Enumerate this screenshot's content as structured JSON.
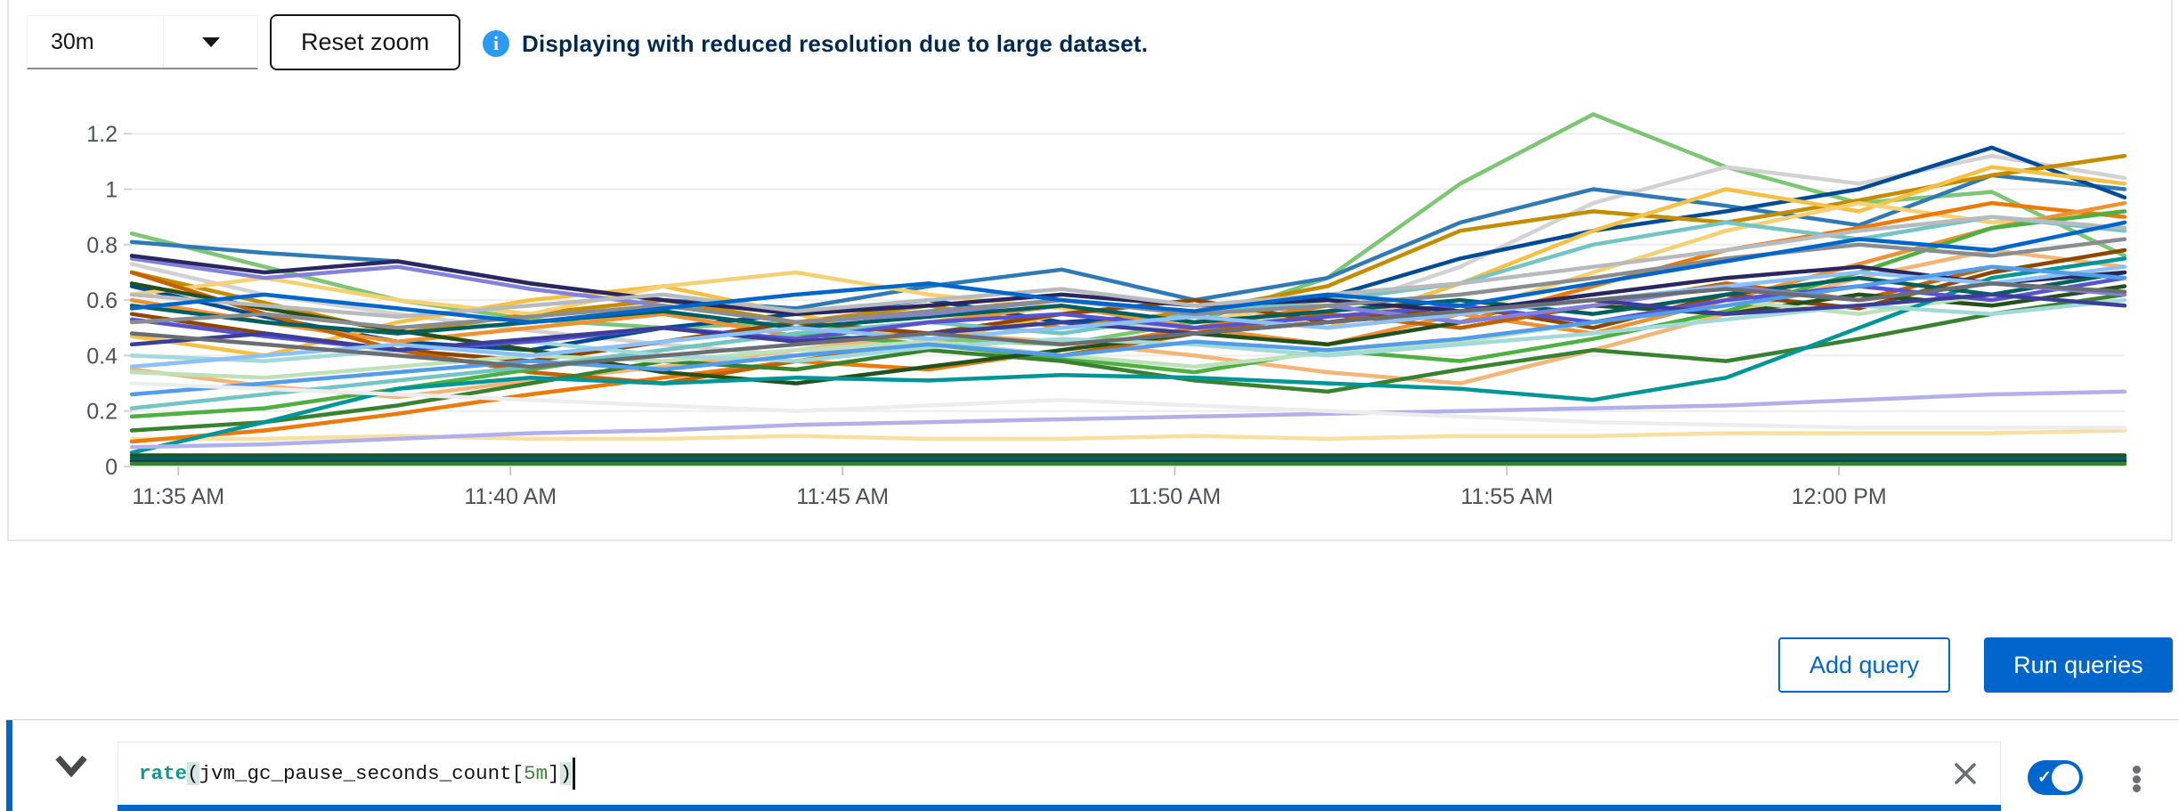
{
  "toolbar": {
    "timespan": "30m",
    "reset_zoom": "Reset zoom",
    "info_message": "Displaying with reduced resolution due to large dataset."
  },
  "chart_data": {
    "type": "line",
    "title": "",
    "xlabel": "",
    "ylabel": "",
    "grid": "horizontal",
    "legend": "none",
    "y_ticks": [
      0,
      0.2,
      0.4,
      0.6,
      0.8,
      1,
      1.2
    ],
    "y_tick_labels": [
      "0",
      "0.2",
      "0.4",
      "0.6",
      "0.8",
      "1",
      "1.2"
    ],
    "ylim": [
      0,
      1.27
    ],
    "x_range_minutes": 30,
    "x_tick_minutes": [
      0.7,
      5.7,
      10.7,
      15.7,
      20.7,
      25.7
    ],
    "x_tick_labels": [
      "11:35 AM",
      "11:40 AM",
      "11:45 AM",
      "11:50 AM",
      "11:55 AM",
      "12:00 PM"
    ],
    "series": [
      {
        "color": "#7CC674",
        "values": [
          0.84,
          0.72,
          0.6,
          0.53,
          0.5,
          0.52,
          0.46,
          0.44,
          0.52,
          0.68,
          1.02,
          1.27,
          1.08,
          0.95,
          0.99,
          0.76
        ]
      },
      {
        "color": "#D2D2D2",
        "values": [
          0.73,
          0.62,
          0.55,
          0.49,
          0.44,
          0.4,
          0.48,
          0.52,
          0.5,
          0.56,
          0.72,
          0.95,
          1.08,
          1.02,
          1.12,
          1.04
        ]
      },
      {
        "color": "#2F7AB5",
        "values": [
          0.81,
          0.77,
          0.74,
          0.66,
          0.6,
          0.57,
          0.65,
          0.71,
          0.6,
          0.68,
          0.88,
          1.0,
          0.94,
          0.87,
          1.05,
          1.0
        ]
      },
      {
        "color": "#004B95",
        "values": [
          0.65,
          0.54,
          0.45,
          0.42,
          0.5,
          0.55,
          0.6,
          0.52,
          0.55,
          0.61,
          0.75,
          0.85,
          0.92,
          1.0,
          1.15,
          0.97
        ]
      },
      {
        "color": "#C58C00",
        "values": [
          0.7,
          0.59,
          0.48,
          0.55,
          0.6,
          0.52,
          0.58,
          0.5,
          0.56,
          0.65,
          0.85,
          0.92,
          0.88,
          0.96,
          1.05,
          1.12
        ]
      },
      {
        "color": "#F4C145",
        "values": [
          0.47,
          0.4,
          0.52,
          0.6,
          0.65,
          0.55,
          0.45,
          0.55,
          0.6,
          0.5,
          0.66,
          0.85,
          1.0,
          0.92,
          1.08,
          1.02
        ]
      },
      {
        "color": "#F6D173",
        "values": [
          0.62,
          0.68,
          0.6,
          0.55,
          0.65,
          0.7,
          0.62,
          0.57,
          0.52,
          0.6,
          0.55,
          0.7,
          0.85,
          0.95,
          0.88,
          0.92
        ]
      },
      {
        "color": "#F9E0A2",
        "values": [
          0.1,
          0.1,
          0.11,
          0.1,
          0.1,
          0.11,
          0.1,
          0.1,
          0.11,
          0.1,
          0.11,
          0.11,
          0.12,
          0.12,
          0.12,
          0.13
        ]
      },
      {
        "color": "#EC7A08",
        "values": [
          0.09,
          0.13,
          0.19,
          0.26,
          0.32,
          0.38,
          0.35,
          0.42,
          0.5,
          0.58,
          0.52,
          0.65,
          0.78,
          0.86,
          0.95,
          0.9
        ]
      },
      {
        "color": "#EF9234",
        "values": [
          0.6,
          0.52,
          0.45,
          0.5,
          0.55,
          0.47,
          0.52,
          0.58,
          0.5,
          0.44,
          0.55,
          0.48,
          0.6,
          0.73,
          0.86,
          0.95
        ]
      },
      {
        "color": "#F4B678",
        "values": [
          0.35,
          0.29,
          0.25,
          0.31,
          0.36,
          0.42,
          0.48,
          0.45,
          0.4,
          0.34,
          0.3,
          0.42,
          0.55,
          0.68,
          0.78,
          0.72
        ]
      },
      {
        "color": "#8F4700",
        "values": [
          0.55,
          0.48,
          0.42,
          0.38,
          0.45,
          0.52,
          0.48,
          0.55,
          0.6,
          0.52,
          0.58,
          0.5,
          0.62,
          0.57,
          0.7,
          0.78
        ]
      },
      {
        "color": "#C46100",
        "values": [
          0.7,
          0.55,
          0.42,
          0.34,
          0.3,
          0.38,
          0.45,
          0.4,
          0.48,
          0.55,
          0.5,
          0.58,
          0.66,
          0.6,
          0.72,
          0.68
        ]
      },
      {
        "color": "#4CB140",
        "values": [
          0.18,
          0.21,
          0.28,
          0.35,
          0.42,
          0.48,
          0.44,
          0.39,
          0.34,
          0.42,
          0.38,
          0.46,
          0.56,
          0.7,
          0.86,
          0.92
        ]
      },
      {
        "color": "#38812F",
        "values": [
          0.13,
          0.16,
          0.22,
          0.3,
          0.38,
          0.35,
          0.42,
          0.38,
          0.31,
          0.27,
          0.35,
          0.42,
          0.38,
          0.46,
          0.55,
          0.62
        ]
      },
      {
        "color": "#23511E",
        "values": [
          0.66,
          0.57,
          0.49,
          0.42,
          0.34,
          0.3,
          0.36,
          0.42,
          0.48,
          0.44,
          0.52,
          0.58,
          0.55,
          0.62,
          0.58,
          0.65
        ]
      },
      {
        "color": "#BDE2B9",
        "values": [
          0.34,
          0.32,
          0.36,
          0.4,
          0.38,
          0.42,
          0.45,
          0.4,
          0.36,
          0.41,
          0.45,
          0.52,
          0.6,
          0.55,
          0.62,
          0.58
        ]
      },
      {
        "color": "#009596",
        "values": [
          0.05,
          0.16,
          0.28,
          0.32,
          0.3,
          0.32,
          0.31,
          0.33,
          0.32,
          0.3,
          0.28,
          0.24,
          0.32,
          0.5,
          0.68,
          0.75
        ]
      },
      {
        "color": "#73C5C5",
        "values": [
          0.21,
          0.26,
          0.31,
          0.36,
          0.42,
          0.48,
          0.52,
          0.48,
          0.55,
          0.6,
          0.66,
          0.8,
          0.88,
          0.82,
          0.9,
          0.85
        ]
      },
      {
        "color": "#A2D9D9",
        "values": [
          0.4,
          0.38,
          0.42,
          0.45,
          0.4,
          0.38,
          0.43,
          0.46,
          0.44,
          0.4,
          0.44,
          0.48,
          0.53,
          0.58,
          0.55,
          0.6
        ]
      },
      {
        "color": "#005F60",
        "values": [
          0.58,
          0.52,
          0.48,
          0.52,
          0.56,
          0.5,
          0.54,
          0.58,
          0.52,
          0.56,
          0.6,
          0.55,
          0.62,
          0.68,
          0.62,
          0.7
        ]
      },
      {
        "color": "#003737",
        "values": [
          0.02,
          0.02,
          0.02,
          0.02,
          0.02,
          0.02,
          0.02,
          0.02,
          0.02,
          0.02,
          0.02,
          0.02,
          0.02,
          0.02,
          0.02,
          0.02
        ]
      },
      {
        "color": "#23511E",
        "values": [
          0.04,
          0.04,
          0.04,
          0.04,
          0.04,
          0.04,
          0.04,
          0.04,
          0.04,
          0.04,
          0.04,
          0.04,
          0.04,
          0.04,
          0.04,
          0.04
        ]
      },
      {
        "color": "#38812F",
        "values": [
          0.01,
          0.01,
          0.01,
          0.01,
          0.01,
          0.01,
          0.01,
          0.01,
          0.01,
          0.01,
          0.01,
          0.01,
          0.01,
          0.01,
          0.01,
          0.01
        ]
      },
      {
        "color": "#005F60",
        "values": [
          0.03,
          0.03,
          0.03,
          0.03,
          0.03,
          0.03,
          0.03,
          0.03,
          0.03,
          0.03,
          0.03,
          0.03,
          0.03,
          0.03,
          0.03,
          0.03
        ]
      },
      {
        "color": "#5752D1",
        "values": [
          0.53,
          0.47,
          0.42,
          0.45,
          0.5,
          0.46,
          0.52,
          0.55,
          0.5,
          0.54,
          0.58,
          0.52,
          0.6,
          0.65,
          0.6,
          0.68
        ]
      },
      {
        "color": "#8481DD",
        "values": [
          0.75,
          0.68,
          0.72,
          0.64,
          0.58,
          0.52,
          0.55,
          0.6,
          0.55,
          0.58,
          0.52,
          0.58,
          0.65,
          0.6,
          0.66,
          0.62
        ]
      },
      {
        "color": "#B2B0EA",
        "values": [
          0.07,
          0.08,
          0.1,
          0.12,
          0.13,
          0.15,
          0.16,
          0.17,
          0.18,
          0.19,
          0.2,
          0.21,
          0.22,
          0.24,
          0.26,
          0.27
        ]
      },
      {
        "color": "#2A265F",
        "values": [
          0.76,
          0.7,
          0.74,
          0.66,
          0.6,
          0.55,
          0.58,
          0.62,
          0.58,
          0.6,
          0.56,
          0.62,
          0.68,
          0.72,
          0.66,
          0.7
        ]
      },
      {
        "color": "#3C3D99",
        "values": [
          0.44,
          0.48,
          0.42,
          0.46,
          0.5,
          0.45,
          0.48,
          0.52,
          0.48,
          0.52,
          0.56,
          0.6,
          0.55,
          0.58,
          0.62,
          0.58
        ]
      },
      {
        "color": "#8BC1F7",
        "values": [
          0.36,
          0.4,
          0.44,
          0.4,
          0.45,
          0.5,
          0.46,
          0.5,
          0.54,
          0.5,
          0.55,
          0.6,
          0.65,
          0.7,
          0.66,
          0.72
        ]
      },
      {
        "color": "#519DE9",
        "values": [
          0.26,
          0.3,
          0.34,
          0.38,
          0.35,
          0.4,
          0.44,
          0.4,
          0.45,
          0.42,
          0.46,
          0.52,
          0.58,
          0.65,
          0.72,
          0.68
        ]
      },
      {
        "color": "#8A8D90",
        "values": [
          0.52,
          0.55,
          0.5,
          0.54,
          0.58,
          0.52,
          0.56,
          0.6,
          0.55,
          0.58,
          0.62,
          0.68,
          0.75,
          0.8,
          0.76,
          0.82
        ]
      },
      {
        "color": "#B8BBBE",
        "values": [
          0.62,
          0.58,
          0.54,
          0.58,
          0.62,
          0.56,
          0.6,
          0.64,
          0.58,
          0.62,
          0.66,
          0.72,
          0.78,
          0.85,
          0.9,
          0.86
        ]
      },
      {
        "color": "#6A6E73",
        "values": [
          0.48,
          0.44,
          0.4,
          0.36,
          0.4,
          0.44,
          0.48,
          0.44,
          0.48,
          0.52,
          0.56,
          0.6,
          0.64,
          0.6,
          0.66,
          0.63
        ]
      },
      {
        "color": "#EDEDED",
        "values": [
          0.3,
          0.28,
          0.26,
          0.24,
          0.22,
          0.2,
          0.22,
          0.24,
          0.22,
          0.2,
          0.18,
          0.16,
          0.15,
          0.14,
          0.14,
          0.14
        ]
      },
      {
        "color": "#0066CC",
        "values": [
          0.57,
          0.62,
          0.57,
          0.52,
          0.57,
          0.62,
          0.66,
          0.6,
          0.56,
          0.62,
          0.58,
          0.66,
          0.74,
          0.82,
          0.78,
          0.88
        ]
      }
    ]
  },
  "actions": {
    "add_query": "Add query",
    "run_queries": "Run queries"
  },
  "query_row": {
    "expression": "rate(jvm_gc_pause_seconds_count[5m])",
    "tokens": [
      {
        "text": "rate",
        "type": "function"
      },
      {
        "text": "(",
        "type": "bracket-match"
      },
      {
        "text": "jvm_gc_pause_seconds_count[",
        "type": "plain"
      },
      {
        "text": "5m",
        "type": "duration"
      },
      {
        "text": "]",
        "type": "plain"
      },
      {
        "text": ")",
        "type": "bracket-match"
      }
    ],
    "enabled_toggle": true
  },
  "colors": {
    "primary": "#0066CC",
    "info_icon": "#2B9AF3",
    "info_text": "#002952",
    "axis_label": "#4D5258",
    "grid_line": "#EDEDED",
    "border": "#D2D2D2"
  }
}
